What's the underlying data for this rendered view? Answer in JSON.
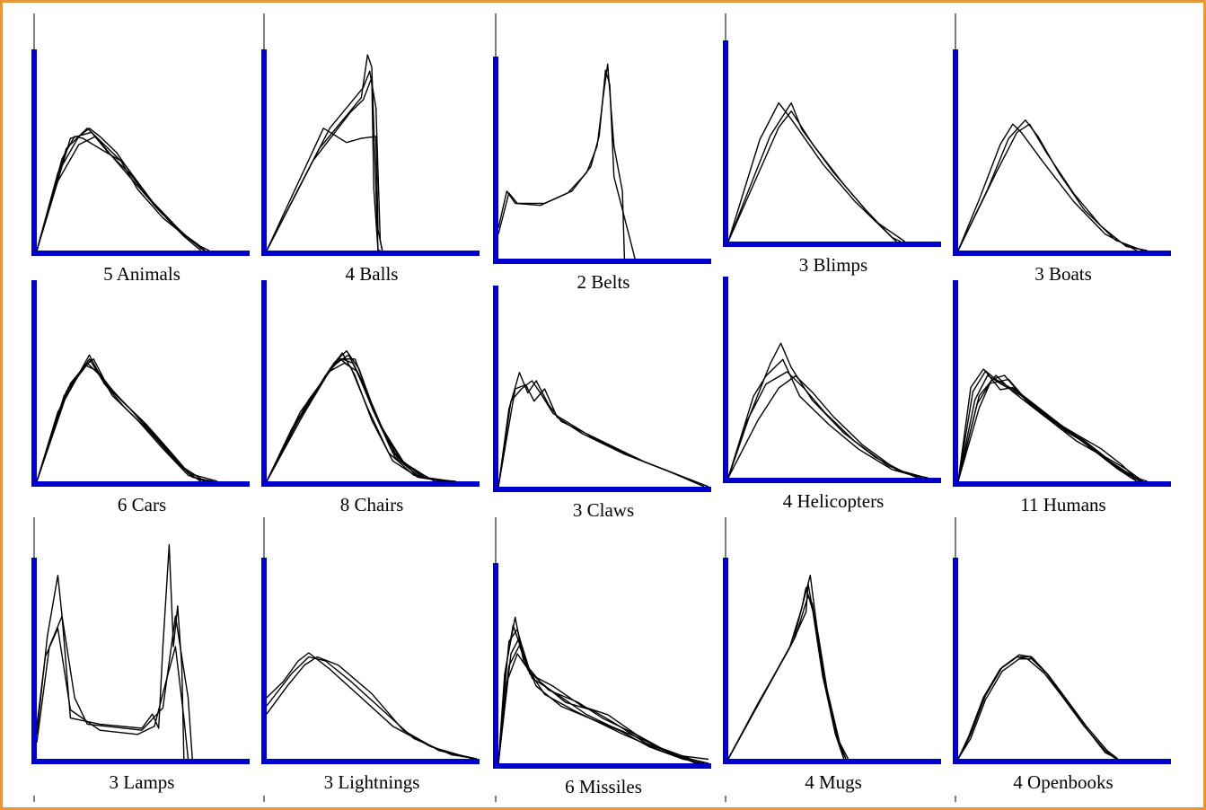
{
  "figure": {
    "caption_color": "#000000",
    "axis_color": "#0000cc",
    "curve_color": "#000000",
    "frame_color": "#e8963c"
  },
  "chart_data": [
    {
      "type": "line",
      "caption": "5 Animals",
      "curve_count": 5
    },
    {
      "type": "line",
      "caption": "4 Balls",
      "curve_count": 4
    },
    {
      "type": "line",
      "caption": "2 Belts",
      "curve_count": 2
    },
    {
      "type": "line",
      "caption": "3 Blimps",
      "curve_count": 3
    },
    {
      "type": "line",
      "caption": "3 Boats",
      "curve_count": 3
    },
    {
      "type": "line",
      "caption": "6 Cars",
      "curve_count": 6
    },
    {
      "type": "line",
      "caption": "8 Chairs",
      "curve_count": 8
    },
    {
      "type": "line",
      "caption": "3 Claws",
      "curve_count": 3
    },
    {
      "type": "line",
      "caption": "4 Helicopters",
      "curve_count": 4
    },
    {
      "type": "line",
      "caption": "11 Humans",
      "curve_count": 11
    },
    {
      "type": "line",
      "caption": "3 Lamps",
      "curve_count": 3
    },
    {
      "type": "line",
      "caption": "3 Lightnings",
      "curve_count": 3
    },
    {
      "type": "line",
      "caption": "6 Missiles",
      "curve_count": 6
    },
    {
      "type": "line",
      "caption": "4 Mugs",
      "curve_count": 4
    },
    {
      "type": "line",
      "caption": "4 Openbooks",
      "curve_count": 4
    }
  ]
}
